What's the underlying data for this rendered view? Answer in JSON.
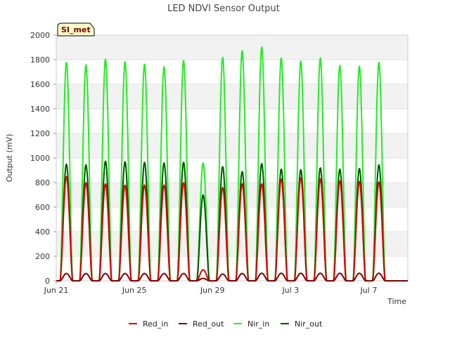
{
  "chart_data": {
    "type": "line",
    "title": "LED NDVI Sensor Output",
    "xlabel": "Time",
    "ylabel": "Output (mV)",
    "site_tag": "SI_met",
    "ylim": [
      0,
      2000
    ],
    "y_ticks": [
      "0",
      "200",
      "400",
      "600",
      "800",
      "1000",
      "1200",
      "1400",
      "1600",
      "1800",
      "2000"
    ],
    "x_range": [
      "2024-06-21",
      "2024-07-09"
    ],
    "x_ticks": [
      {
        "date": "2024-06-21",
        "label": "Jun 21"
      },
      {
        "date": "2024-06-25",
        "label": "Jun 25"
      },
      {
        "date": "2024-06-29",
        "label": "Jun 29"
      },
      {
        "date": "2024-07-03",
        "label": "Jul 3"
      },
      {
        "date": "2024-07-07",
        "label": "Jul 7"
      }
    ],
    "grid": true,
    "legend_position": "bottom",
    "days": [
      "2024-06-21",
      "2024-06-22",
      "2024-06-23",
      "2024-06-24",
      "2024-06-25",
      "2024-06-26",
      "2024-06-27",
      "2024-06-28",
      "2024-06-29",
      "2024-06-30",
      "2024-07-01",
      "2024-07-02",
      "2024-07-03",
      "2024-07-04",
      "2024-07-05",
      "2024-07-06",
      "2024-07-07",
      "2024-07-08"
    ],
    "series": [
      {
        "name": "Red_in",
        "color": "#dd0000",
        "daily_peak": [
          850,
          800,
          790,
          780,
          780,
          780,
          800,
          90,
          760,
          790,
          790,
          830,
          840,
          830,
          815,
          810,
          805,
          0
        ]
      },
      {
        "name": "Red_out",
        "color": "#7a0000",
        "daily_peak": [
          60,
          60,
          60,
          60,
          60,
          60,
          60,
          20,
          55,
          60,
          62,
          62,
          62,
          62,
          62,
          62,
          62,
          0
        ]
      },
      {
        "name": "Nir_in",
        "color": "#22ee22",
        "daily_peak": [
          1780,
          1760,
          1805,
          1785,
          1765,
          1745,
          1795,
          960,
          1820,
          1875,
          1905,
          1815,
          1790,
          1815,
          1755,
          1750,
          1780,
          0
        ]
      },
      {
        "name": "Nir_out",
        "color": "#005500",
        "daily_peak": [
          950,
          945,
          975,
          970,
          965,
          960,
          965,
          700,
          930,
          890,
          955,
          910,
          905,
          920,
          910,
          915,
          945,
          0
        ]
      }
    ]
  }
}
